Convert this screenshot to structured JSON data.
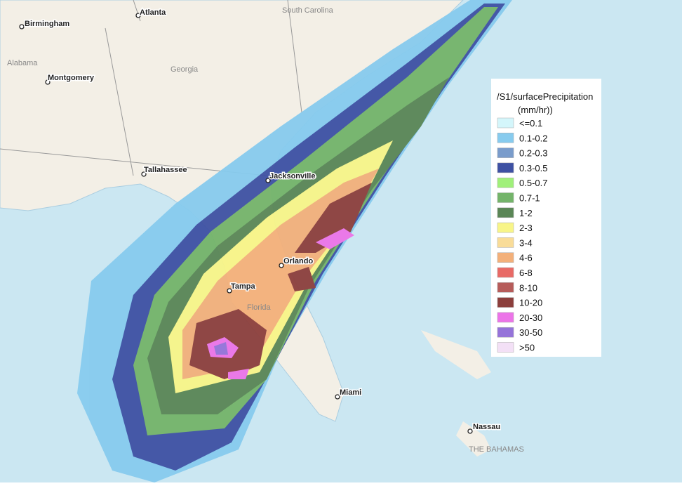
{
  "map": {
    "places": [
      {
        "label": "Atlanta"
      },
      {
        "label": "Birmingham"
      },
      {
        "label": "Montgomery"
      },
      {
        "label": "Tallahassee"
      },
      {
        "label": "Jacksonville"
      },
      {
        "label": "Orlando"
      },
      {
        "label": "Tampa"
      },
      {
        "label": "Miami"
      },
      {
        "label": "Nassau"
      }
    ],
    "regions": [
      {
        "label": "South Carolina"
      },
      {
        "label": "Alabama"
      },
      {
        "label": "Georgia"
      },
      {
        "label": "Florida"
      },
      {
        "label": "THE BAHAMAS"
      }
    ]
  },
  "legend": {
    "title": "/S1/surfacePrecipitation",
    "unit": "(mm/hr))",
    "items": [
      {
        "label": "<=0.1",
        "color": "#d4f6fb"
      },
      {
        "label": "0.1-0.2",
        "color": "#87cbee"
      },
      {
        "label": "0.2-0.3",
        "color": "#7a9ccb"
      },
      {
        "label": "0.3-0.5",
        "color": "#3e51a3"
      },
      {
        "label": "0.5-0.7",
        "color": "#a0f07a"
      },
      {
        "label": "0.7-1",
        "color": "#74b46a"
      },
      {
        "label": "1-2",
        "color": "#5a8656"
      },
      {
        "label": "2-3",
        "color": "#f8f588"
      },
      {
        "label": "3-4",
        "color": "#f9dc98"
      },
      {
        "label": "4-6",
        "color": "#f3b07a"
      },
      {
        "label": "6-8",
        "color": "#e86a66"
      },
      {
        "label": "8-10",
        "color": "#b65c5a"
      },
      {
        "label": "10-20",
        "color": "#8c3f3c"
      },
      {
        "label": "20-30",
        "color": "#ec74e8"
      },
      {
        "label": "30-50",
        "color": "#9573d9"
      },
      {
        "label": ">50",
        "color": "#f3e0f6"
      }
    ]
  }
}
